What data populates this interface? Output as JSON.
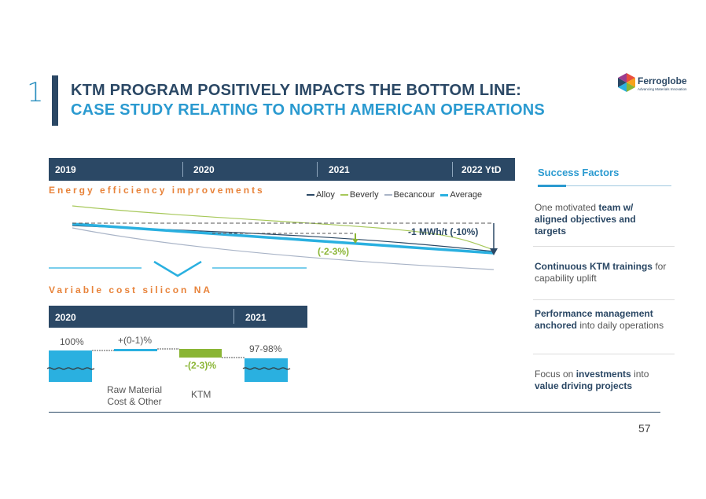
{
  "slide": {
    "section_number": "1",
    "title_line1": "KTM PROGRAM POSITIVELY IMPACTS THE BOTTOM LINE:",
    "title_line2": "CASE STUDY RELATING TO NORTH AMERICAN OPERATIONS",
    "page_number": "57",
    "logo": {
      "name": "Ferroglobe",
      "tagline": "Advancing Materials Innovation"
    }
  },
  "energy": {
    "years": [
      "2019",
      "2020",
      "2021",
      "2022 YtD"
    ],
    "heading": "Energy efficiency improvements",
    "legend": [
      {
        "label": "Alloy",
        "color": "#2b4865"
      },
      {
        "label": "Beverly",
        "color": "#a7c85a"
      },
      {
        "label": "Becancour",
        "color": "#a9b4c7"
      },
      {
        "label": "Average",
        "color": "#2ab0e0"
      }
    ],
    "annotation_total": "-1 MWh/t (-10%)",
    "annotation_avg": "(-2-3%)"
  },
  "variable_cost": {
    "heading": "Variable cost silicon NA",
    "years": [
      "2020",
      "2021"
    ],
    "steps": [
      {
        "value_label": "100%",
        "category": "",
        "value": 100,
        "color": "#2ab0e0"
      },
      {
        "value_label": "+(0-1)%",
        "category": "Raw Material Cost & Other",
        "value": 0.5,
        "color": "#2ab0e0"
      },
      {
        "value_label": "-(2-3)%",
        "category": "KTM",
        "value": -2.5,
        "color": "#8ab534"
      },
      {
        "value_label": "97-98%",
        "category": "",
        "value": 97.5,
        "color": "#2ab0e0"
      }
    ],
    "raw_label_line1": "Raw Material",
    "raw_label_line2": "Cost & Other",
    "ktm_label": "KTM"
  },
  "success_factors": {
    "title": "Success Factors",
    "items": [
      {
        "pre": "One motivated ",
        "bold": "team w/ aligned objectives and targets",
        "post": ""
      },
      {
        "pre": "",
        "bold": "Continuous KTM trainings",
        "post": " for capability uplift"
      },
      {
        "pre": "",
        "bold": "Performance management anchored",
        "post": " into daily operations"
      },
      {
        "pre": "Focus on ",
        "bold": "investments",
        "post": " into ",
        "bold2": "value driving projects"
      }
    ]
  }
}
